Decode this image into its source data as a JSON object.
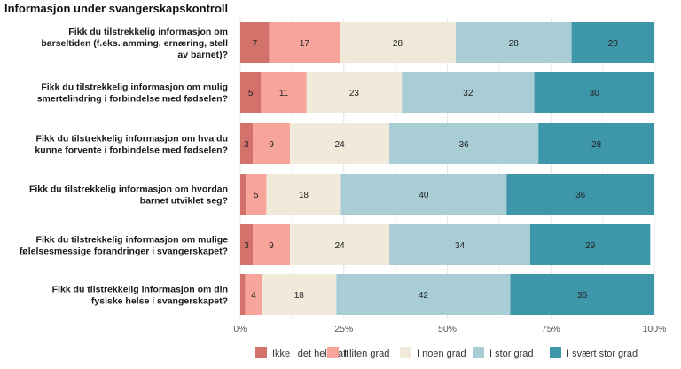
{
  "chart_data": {
    "type": "bar",
    "orientation": "horizontal",
    "stacked": true,
    "title": "Informasjon under svangerskapskontroll",
    "xlabel": "",
    "ylabel": "",
    "xlim": [
      0,
      100
    ],
    "x_ticks": [
      0,
      25,
      50,
      75,
      100
    ],
    "x_tick_labels": [
      "0%",
      "25%",
      "50%",
      "75%",
      "100%"
    ],
    "grid": true,
    "legend_position": "bottom",
    "categories": [
      [
        "Fikk du tilstrekkelig informasjon om",
        "barseltiden (f.eks. amming, ernæring, stell",
        "av barnet)?"
      ],
      [
        "Fikk du tilstrekkelig informasjon om mulig",
        "smertelindring i forbindelse med fødselen?"
      ],
      [
        "Fikk du tilstrekkelig informasjon om hva du",
        "kunne forvente i forbindelse med fødselen?"
      ],
      [
        "Fikk du tilstrekkelig informasjon om hvordan",
        "barnet utviklet seg?"
      ],
      [
        "Fikk du tilstrekkelig informasjon om mulige",
        "følelsesmessige forandringer i svangerskapet?"
      ],
      [
        "Fikk du tilstrekkelig informasjon om din",
        "fysiske helse i svangerskapet?"
      ]
    ],
    "series": [
      {
        "name": "Ikke i det hele tatt",
        "color": "#d2726b",
        "values": [
          7,
          5,
          3,
          1.3,
          3,
          1.2
        ]
      },
      {
        "name": "I liten grad",
        "color": "#f7a49a",
        "values": [
          17,
          11,
          9,
          5,
          9,
          4
        ]
      },
      {
        "name": "I noen grad",
        "color": "#f1e9da",
        "values": [
          28,
          23,
          24,
          18,
          24,
          18
        ]
      },
      {
        "name": "I stor grad",
        "color": "#a8cdd5",
        "values": [
          28,
          32,
          36,
          40,
          34,
          42
        ]
      },
      {
        "name": "I svært stor grad",
        "color": "#3e97a8",
        "values": [
          20,
          30,
          28,
          36,
          29,
          35
        ]
      }
    ],
    "data_labels": [
      [
        "7",
        "17",
        "28",
        "28",
        "20"
      ],
      [
        "5",
        "11",
        "23",
        "32",
        "30"
      ],
      [
        "3",
        "9",
        "24",
        "36",
        "28"
      ],
      [
        "",
        "5",
        "18",
        "40",
        "36"
      ],
      [
        "3",
        "9",
        "24",
        "34",
        "29"
      ],
      [
        "",
        "4",
        "18",
        "42",
        "35"
      ]
    ]
  }
}
